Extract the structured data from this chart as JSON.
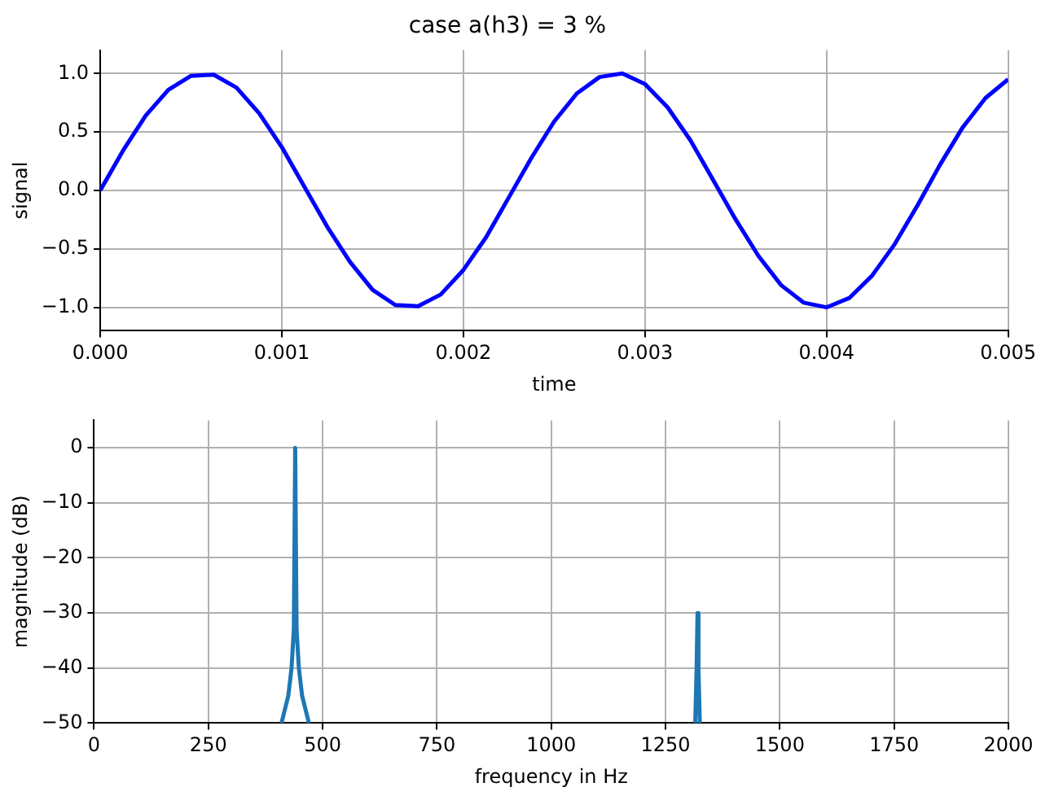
{
  "chart_data": [
    {
      "type": "line",
      "title": "case a(h3) = 3 %",
      "xlabel": "time",
      "ylabel": "signal",
      "grid": true,
      "xlim": [
        0,
        0.005
      ],
      "ylim": [
        -1.2,
        1.2
      ],
      "xticks": [
        {
          "value": 0,
          "label": "0.000"
        },
        {
          "value": 0.001,
          "label": "0.001"
        },
        {
          "value": 0.002,
          "label": "0.002"
        },
        {
          "value": 0.003,
          "label": "0.003"
        },
        {
          "value": 0.004,
          "label": "0.004"
        },
        {
          "value": 0.005,
          "label": "0.005"
        }
      ],
      "yticks": [
        {
          "value": -1,
          "label": "−1.0"
        },
        {
          "value": -0.5,
          "label": "−0.5"
        },
        {
          "value": 0,
          "label": "0.0"
        },
        {
          "value": 0.5,
          "label": "0.5"
        },
        {
          "value": 1,
          "label": "1.0"
        }
      ],
      "series": [
        {
          "color": "#0000ff",
          "x": [
            0,
            0.000125,
            0.00025,
            0.000375,
            0.0005,
            0.000625,
            0.00075,
            0.000875,
            0.001,
            0.001125,
            0.00125,
            0.001375,
            0.0015,
            0.001625,
            0.00175,
            0.001875,
            0.002,
            0.002125,
            0.00225,
            0.002375,
            0.0025,
            0.002625,
            0.00275,
            0.002875,
            0.003,
            0.003125,
            0.00325,
            0.003375,
            0.0035,
            0.003625,
            0.00375,
            0.003875,
            0.004,
            0.004125,
            0.00425,
            0.004375,
            0.0045,
            0.004625,
            0.00475,
            0.004875,
            0.005
          ],
          "values": [
            0,
            0.34,
            0.64,
            0.86,
            0.98,
            0.99,
            0.88,
            0.66,
            0.37,
            0.03,
            -0.31,
            -0.61,
            -0.85,
            -0.98,
            -0.99,
            -0.89,
            -0.68,
            -0.4,
            -0.06,
            0.28,
            0.59,
            0.83,
            0.97,
            1.0,
            0.91,
            0.71,
            0.43,
            0.09,
            -0.25,
            -0.56,
            -0.81,
            -0.96,
            -1.0,
            -0.92,
            -0.73,
            -0.46,
            -0.13,
            0.22,
            0.54,
            0.79,
            0.95
          ]
        }
      ]
    },
    {
      "type": "line",
      "xlabel": "frequency in Hz",
      "ylabel": "magnitude (dB)",
      "grid": true,
      "xlim": [
        0,
        2000
      ],
      "ylim": [
        -50,
        5
      ],
      "xticks": [
        0,
        250,
        500,
        750,
        1000,
        1250,
        1500,
        1750,
        2000
      ],
      "yticks": [
        {
          "value": -50,
          "label": "−50"
        },
        {
          "value": -40,
          "label": "−40"
        },
        {
          "value": -30,
          "label": "−30"
        },
        {
          "value": -20,
          "label": "−20"
        },
        {
          "value": -10,
          "label": "−10"
        },
        0
      ],
      "series": [
        {
          "color": "#1f77b4",
          "x": [
            410,
            425,
            432,
            437,
            440,
            443,
            448,
            455,
            470,
            900,
            1315,
            1318,
            1320,
            1322,
            1325
          ],
          "values": [
            -50,
            -45,
            -40,
            -33,
            0,
            -33,
            -40,
            -45,
            -50,
            null,
            -50,
            -40,
            -30,
            -40,
            -50
          ]
        }
      ]
    }
  ]
}
